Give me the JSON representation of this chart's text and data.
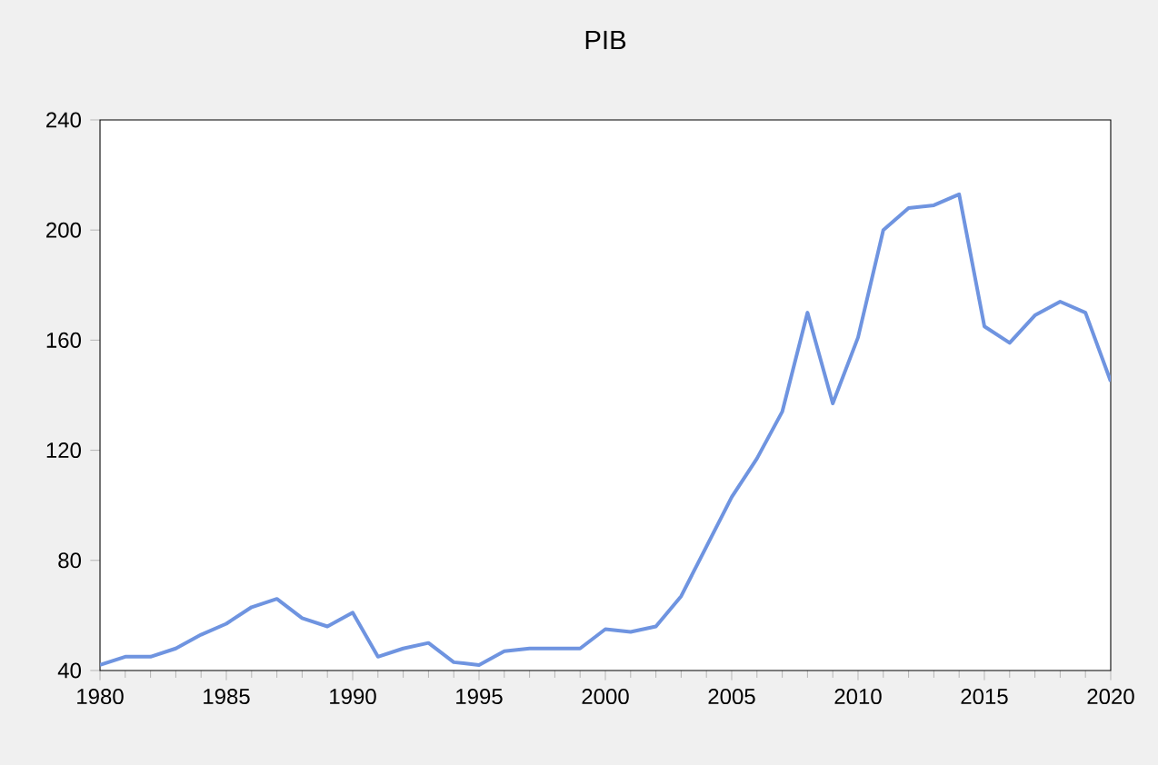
{
  "chart_data": {
    "type": "line",
    "title": "PIB",
    "x": [
      1980,
      1981,
      1982,
      1983,
      1984,
      1985,
      1986,
      1987,
      1988,
      1989,
      1990,
      1991,
      1992,
      1993,
      1994,
      1995,
      1996,
      1997,
      1998,
      1999,
      2000,
      2001,
      2002,
      2003,
      2004,
      2005,
      2006,
      2007,
      2008,
      2009,
      2010,
      2011,
      2012,
      2013,
      2014,
      2015,
      2016,
      2017,
      2018,
      2019,
      2020
    ],
    "series": [
      {
        "color": "#6f94e0",
        "values": [
          42,
          45,
          45,
          48,
          53,
          57,
          63,
          66,
          59,
          56,
          61,
          45,
          48,
          50,
          43,
          42,
          47,
          48,
          48,
          48,
          55,
          54,
          56,
          67,
          85,
          103,
          117,
          134,
          170,
          137,
          161,
          200,
          208,
          209,
          213,
          165,
          159,
          169,
          174,
          170,
          145
        ]
      }
    ],
    "xlim": [
      1980,
      2020
    ],
    "xticks": [
      1980,
      1985,
      1990,
      1995,
      2000,
      2005,
      2010,
      2015,
      2020
    ],
    "ylim": [
      40,
      240
    ],
    "yticks": [
      40,
      80,
      120,
      160,
      200,
      240
    ],
    "grid": false,
    "marker": "none",
    "line_style": "solid"
  }
}
